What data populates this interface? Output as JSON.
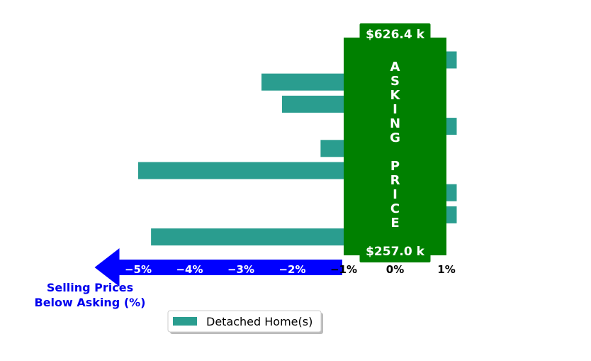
{
  "chart_data": {
    "type": "bar",
    "orientation": "horizontal",
    "series": [
      {
        "name": "Detached Home(s)",
        "color": "#2a9d8f",
        "values": [
          1.2,
          -2.6,
          -2.2,
          1.2,
          -1.45,
          -5.0,
          1.2,
          1.2,
          -4.75
        ]
      }
    ],
    "xlim": [
      -6.0,
      1.2
    ],
    "x_ticks": [
      -5,
      -4,
      -3,
      -2,
      -1,
      0,
      1
    ],
    "x_tick_labels": [
      "−5%",
      "−4%",
      "−3%",
      "−2%",
      "−1%",
      "0%",
      "1%"
    ],
    "xlabel_lines": [
      "Selling Prices",
      "Below Asking (%)"
    ],
    "asking_price_band": {
      "x_range": [
        -1.0,
        1.0
      ],
      "color": "#008000",
      "top_label": "$626.4 k",
      "bottom_label": "$257.0 k",
      "vertical_text": "ASKING PRICE"
    },
    "arrow_color": "#0000ff",
    "legend": {
      "label": "Detached Home(s)",
      "placement": "bottom-center"
    }
  }
}
